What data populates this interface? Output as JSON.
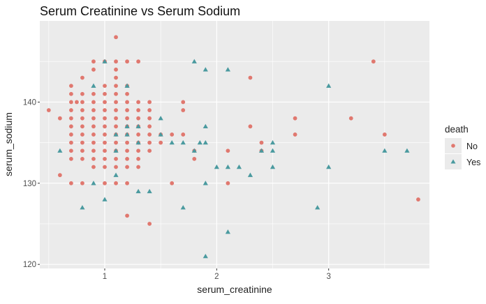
{
  "chart_data": {
    "type": "scatter",
    "title": "Serum Creatinine vs Serum Sodium",
    "xlabel": "serum_creatinine",
    "ylabel": "serum_sodium",
    "xlim": [
      0.42,
      3.9
    ],
    "ylim": [
      119.5,
      150
    ],
    "x_ticks": [
      1,
      2,
      3
    ],
    "y_ticks": [
      120,
      130,
      140
    ],
    "grid": true,
    "legend": {
      "title": "death",
      "placement": "right",
      "entries": [
        "No",
        "Yes"
      ]
    },
    "colors": {
      "panel_background": "#ebebeb",
      "grid_major": "#ffffff",
      "No": "#e0786f",
      "Yes": "#4a9a9f"
    },
    "series": [
      {
        "name": "No",
        "marker": "circle",
        "points": [
          [
            0.5,
            139
          ],
          [
            0.6,
            138
          ],
          [
            0.6,
            131
          ],
          [
            0.7,
            142
          ],
          [
            0.7,
            141
          ],
          [
            0.7,
            140
          ],
          [
            0.7,
            139
          ],
          [
            0.7,
            138
          ],
          [
            0.7,
            137
          ],
          [
            0.7,
            136
          ],
          [
            0.7,
            135
          ],
          [
            0.7,
            134
          ],
          [
            0.7,
            133
          ],
          [
            0.7,
            130
          ],
          [
            0.75,
            140
          ],
          [
            0.8,
            143
          ],
          [
            0.8,
            141
          ],
          [
            0.8,
            140
          ],
          [
            0.8,
            139
          ],
          [
            0.8,
            138
          ],
          [
            0.8,
            137
          ],
          [
            0.8,
            136
          ],
          [
            0.8,
            135
          ],
          [
            0.8,
            134
          ],
          [
            0.8,
            133
          ],
          [
            0.8,
            130
          ],
          [
            0.9,
            145
          ],
          [
            0.9,
            144
          ],
          [
            0.9,
            141
          ],
          [
            0.9,
            140
          ],
          [
            0.9,
            139
          ],
          [
            0.9,
            138
          ],
          [
            0.9,
            137
          ],
          [
            0.9,
            136
          ],
          [
            0.9,
            135
          ],
          [
            0.9,
            134
          ],
          [
            0.9,
            133
          ],
          [
            0.9,
            132
          ],
          [
            1.0,
            145
          ],
          [
            1.0,
            142
          ],
          [
            1.0,
            141
          ],
          [
            1.0,
            140
          ],
          [
            1.0,
            139
          ],
          [
            1.0,
            138
          ],
          [
            1.0,
            137
          ],
          [
            1.0,
            136
          ],
          [
            1.0,
            135
          ],
          [
            1.0,
            134
          ],
          [
            1.0,
            133
          ],
          [
            1.0,
            132
          ],
          [
            1.0,
            130
          ],
          [
            1.1,
            148
          ],
          [
            1.1,
            145
          ],
          [
            1.1,
            144
          ],
          [
            1.1,
            143
          ],
          [
            1.1,
            142
          ],
          [
            1.1,
            141
          ],
          [
            1.1,
            140
          ],
          [
            1.1,
            139
          ],
          [
            1.1,
            138
          ],
          [
            1.1,
            137
          ],
          [
            1.1,
            136
          ],
          [
            1.1,
            135
          ],
          [
            1.1,
            134
          ],
          [
            1.1,
            133
          ],
          [
            1.1,
            132
          ],
          [
            1.1,
            130
          ],
          [
            1.2,
            145
          ],
          [
            1.2,
            142
          ],
          [
            1.2,
            141
          ],
          [
            1.2,
            140
          ],
          [
            1.2,
            139
          ],
          [
            1.2,
            138
          ],
          [
            1.2,
            137
          ],
          [
            1.2,
            136
          ],
          [
            1.2,
            135
          ],
          [
            1.2,
            134
          ],
          [
            1.2,
            133
          ],
          [
            1.2,
            132
          ],
          [
            1.2,
            130
          ],
          [
            1.2,
            126
          ],
          [
            1.3,
            145
          ],
          [
            1.3,
            140
          ],
          [
            1.3,
            139
          ],
          [
            1.3,
            138
          ],
          [
            1.3,
            137
          ],
          [
            1.3,
            136
          ],
          [
            1.3,
            135
          ],
          [
            1.3,
            134
          ],
          [
            1.3,
            133
          ],
          [
            1.3,
            132
          ],
          [
            1.4,
            140
          ],
          [
            1.4,
            139
          ],
          [
            1.4,
            138
          ],
          [
            1.4,
            137
          ],
          [
            1.4,
            136
          ],
          [
            1.4,
            135
          ],
          [
            1.4,
            134
          ],
          [
            1.4,
            125
          ],
          [
            1.5,
            136
          ],
          [
            1.5,
            135
          ],
          [
            1.6,
            136
          ],
          [
            1.6,
            130
          ],
          [
            1.7,
            140
          ],
          [
            1.7,
            139
          ],
          [
            1.7,
            136
          ],
          [
            1.8,
            134
          ],
          [
            1.8,
            133
          ],
          [
            2.1,
            134
          ],
          [
            2.1,
            130
          ],
          [
            2.3,
            143
          ],
          [
            2.3,
            137
          ],
          [
            2.4,
            135
          ],
          [
            2.4,
            134
          ],
          [
            2.7,
            138
          ],
          [
            2.7,
            136
          ],
          [
            3.2,
            138
          ],
          [
            3.4,
            145
          ],
          [
            3.5,
            136
          ],
          [
            3.8,
            128
          ]
        ]
      },
      {
        "name": "Yes",
        "marker": "triangle",
        "points": [
          [
            0.6,
            134
          ],
          [
            0.8,
            127
          ],
          [
            0.9,
            142
          ],
          [
            0.9,
            130
          ],
          [
            1.0,
            145
          ],
          [
            1.0,
            128
          ],
          [
            1.1,
            136
          ],
          [
            1.1,
            134
          ],
          [
            1.1,
            131
          ],
          [
            1.2,
            142
          ],
          [
            1.2,
            137
          ],
          [
            1.2,
            136
          ],
          [
            1.3,
            137
          ],
          [
            1.3,
            135
          ],
          [
            1.3,
            129
          ],
          [
            1.4,
            129
          ],
          [
            1.5,
            138
          ],
          [
            1.5,
            136
          ],
          [
            1.6,
            135
          ],
          [
            1.7,
            135
          ],
          [
            1.7,
            127
          ],
          [
            1.8,
            145
          ],
          [
            1.8,
            134
          ],
          [
            1.85,
            135
          ],
          [
            1.9,
            144
          ],
          [
            1.9,
            137
          ],
          [
            1.9,
            135
          ],
          [
            1.9,
            130
          ],
          [
            1.9,
            121
          ],
          [
            2.0,
            132
          ],
          [
            2.1,
            144
          ],
          [
            2.1,
            132
          ],
          [
            2.1,
            124
          ],
          [
            2.2,
            132
          ],
          [
            2.3,
            131
          ],
          [
            2.4,
            134
          ],
          [
            2.5,
            135
          ],
          [
            2.5,
            134
          ],
          [
            2.5,
            132
          ],
          [
            2.9,
            127
          ],
          [
            3.0,
            142
          ],
          [
            3.0,
            132
          ],
          [
            3.5,
            134
          ],
          [
            3.7,
            134
          ]
        ]
      }
    ]
  }
}
